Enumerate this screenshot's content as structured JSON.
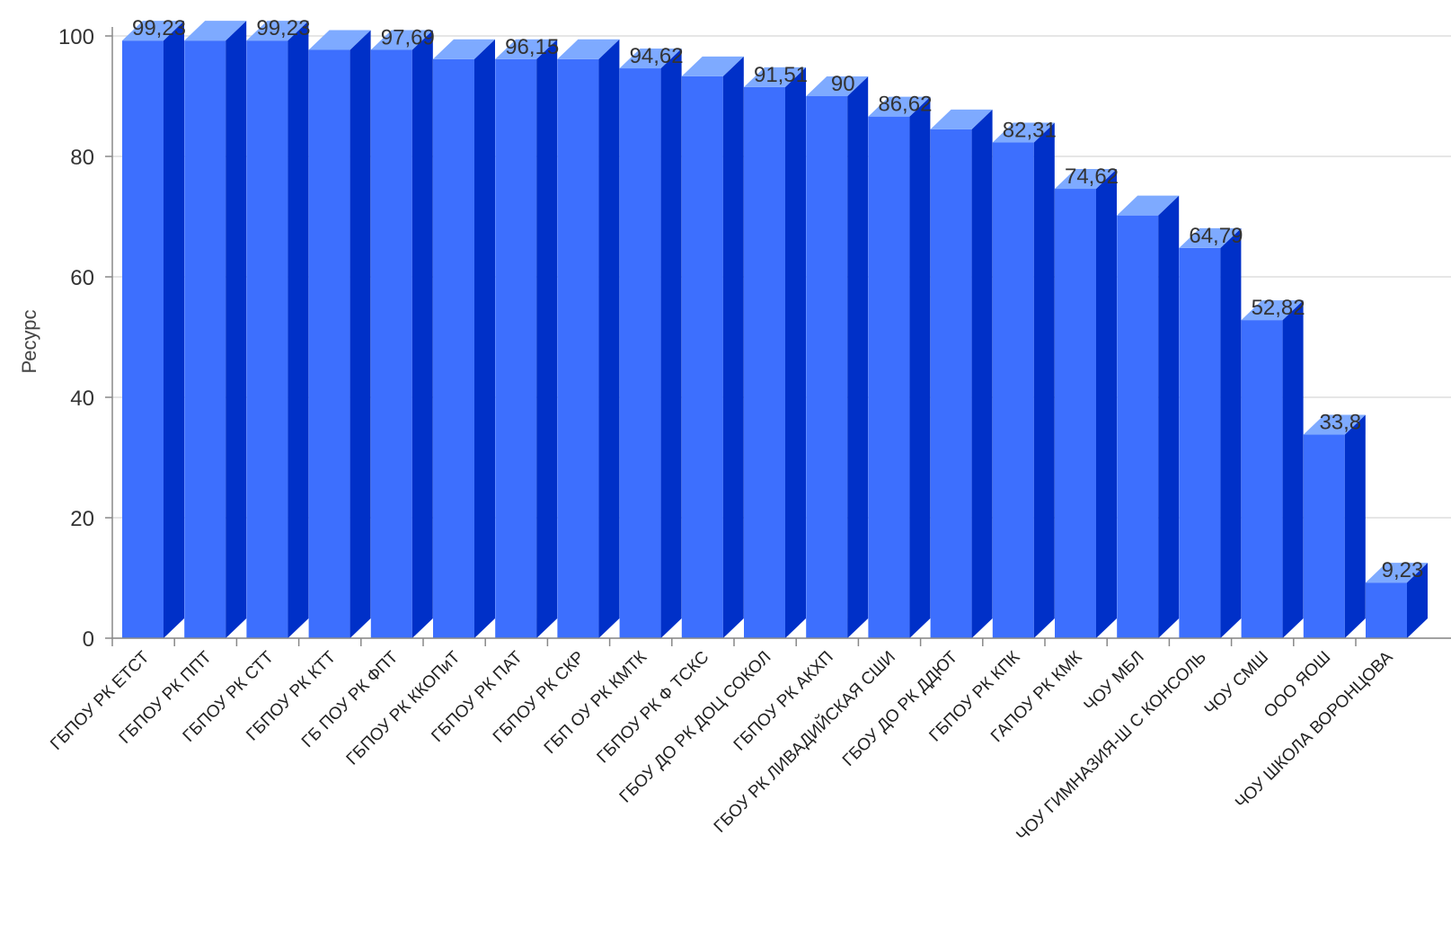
{
  "chart_data": {
    "type": "bar",
    "style": "3d-column",
    "title": "",
    "xlabel": "",
    "ylabel": "Ресурс",
    "ylim": [
      0,
      100
    ],
    "yticks": [
      0,
      20,
      40,
      60,
      80,
      100
    ],
    "grid": true,
    "legend": "none",
    "colors": {
      "front": "#3d6ffe",
      "side": "#0030c8",
      "top": "#7eaaff",
      "grid": "#dddddd",
      "axis": "#888888"
    },
    "categories": [
      "ГБПОУ РК ЕТСТ",
      "ГБПОУ РК ППТ",
      "ГБПОУ РК СТТ",
      "ГБПОУ РК КТТ",
      "ГБ ПОУ РК ФПТ",
      "ГБПОУ РК ККОПиТ",
      "ГБПОУ РК ПАТ",
      "ГБПОУ РК СКР",
      "ГБП ОУ РК КМТК",
      "ГБПОУ РК Ф ТСКС",
      "ГБОУ ДО РК ДОЦ СОКОЛ",
      "ГБПОУ РК АКХП",
      "ГБОУ РК ЛИВАДИЙСКАЯ СШИ",
      "ГБОУ ДО РК ДДЮТ",
      "ГБПОУ РК КПК",
      "ГАПОУ РК КМК",
      "ЧОУ МБЛ",
      "ЧОУ ГИМНАЗИЯ-Ш С КОНСОЛЬ",
      "ЧОУ СМШ",
      "ООО ЯОШ",
      "ЧОУ ШКОЛА ВОРОНЦОВА"
    ],
    "values": [
      99.23,
      99.23,
      99.23,
      97.69,
      97.69,
      96.15,
      96.15,
      96.15,
      94.62,
      93.3,
      91.51,
      90,
      86.62,
      84.5,
      82.31,
      74.62,
      70.2,
      64.79,
      52.82,
      33.8,
      9.23
    ],
    "data_labels": [
      "99,23",
      "",
      "99,23",
      "",
      "97,69",
      "",
      "96,15",
      "",
      "94,62",
      "",
      "91,51",
      "90",
      "86,62",
      "",
      "82,31",
      "74,62",
      "",
      "64,79",
      "52,82",
      "33,8",
      "9,23"
    ]
  }
}
